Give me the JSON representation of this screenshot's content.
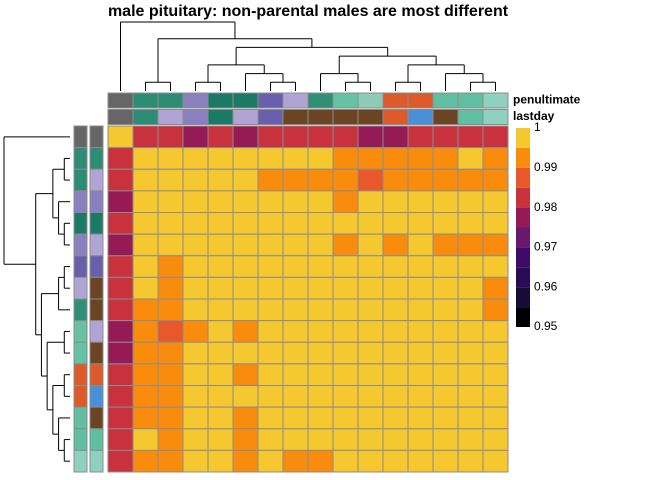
{
  "chart_data": {
    "type": "heatmap",
    "title": "male pituitary: non-parental males are most different",
    "values": [
      [
        1,
        0.982,
        0.982,
        0.977,
        0.982,
        0.977,
        0.982,
        0.982,
        0.982,
        0.982,
        0.977,
        0.977,
        0.982,
        0.982,
        0.982,
        0.982
      ],
      [
        0.982,
        0.997,
        0.997,
        0.997,
        0.997,
        0.997,
        0.997,
        0.997,
        0.997,
        0.992,
        0.992,
        0.992,
        0.992,
        0.992,
        0.997,
        0.992
      ],
      [
        0.982,
        0.997,
        0.997,
        0.997,
        0.997,
        0.997,
        0.992,
        0.992,
        0.992,
        0.992,
        0.987,
        0.992,
        0.992,
        0.992,
        0.992,
        0.992
      ],
      [
        0.977,
        0.997,
        0.997,
        0.997,
        0.997,
        0.997,
        0.997,
        0.997,
        0.997,
        0.992,
        0.997,
        0.997,
        0.997,
        0.997,
        0.997,
        0.997
      ],
      [
        0.982,
        0.997,
        0.997,
        0.997,
        0.997,
        0.997,
        0.997,
        0.997,
        0.997,
        0.997,
        0.997,
        0.997,
        0.997,
        0.997,
        0.997,
        0.997
      ],
      [
        0.977,
        0.997,
        0.997,
        0.997,
        0.997,
        0.997,
        0.997,
        0.997,
        0.997,
        0.992,
        0.997,
        0.992,
        0.997,
        0.992,
        0.992,
        0.992
      ],
      [
        0.982,
        0.997,
        0.992,
        0.997,
        0.997,
        0.997,
        0.997,
        0.997,
        0.997,
        0.997,
        0.997,
        0.997,
        0.997,
        0.997,
        0.997,
        0.997
      ],
      [
        0.982,
        0.997,
        0.992,
        0.997,
        0.997,
        0.997,
        0.997,
        0.997,
        0.997,
        0.997,
        0.997,
        0.997,
        0.997,
        0.997,
        0.997,
        0.992
      ],
      [
        0.982,
        0.992,
        0.992,
        0.997,
        0.997,
        0.997,
        0.997,
        0.997,
        0.997,
        0.997,
        0.997,
        0.997,
        0.997,
        0.997,
        0.997,
        0.992
      ],
      [
        0.977,
        0.992,
        0.987,
        0.992,
        0.997,
        0.992,
        0.997,
        0.997,
        0.997,
        0.997,
        0.997,
        0.997,
        0.997,
        0.997,
        0.997,
        0.997
      ],
      [
        0.977,
        0.992,
        0.992,
        0.997,
        0.997,
        0.997,
        0.997,
        0.997,
        0.997,
        0.997,
        0.997,
        0.997,
        0.997,
        0.997,
        0.997,
        0.997
      ],
      [
        0.982,
        0.992,
        0.992,
        0.997,
        0.997,
        0.992,
        0.997,
        0.997,
        0.997,
        0.997,
        0.997,
        0.997,
        0.997,
        0.997,
        0.997,
        0.997
      ],
      [
        0.982,
        0.992,
        0.992,
        0.997,
        0.997,
        0.997,
        0.997,
        0.997,
        0.997,
        0.997,
        0.997,
        0.997,
        0.997,
        0.997,
        0.997,
        0.997
      ],
      [
        0.982,
        0.992,
        0.992,
        0.997,
        0.997,
        0.992,
        0.997,
        0.997,
        0.997,
        0.997,
        0.997,
        0.997,
        0.997,
        0.997,
        0.997,
        0.997
      ],
      [
        0.982,
        0.997,
        0.992,
        0.997,
        0.997,
        0.992,
        0.997,
        0.997,
        0.997,
        0.997,
        0.997,
        0.997,
        0.997,
        0.997,
        0.997,
        0.997
      ],
      [
        0.982,
        0.992,
        0.992,
        0.997,
        0.997,
        0.992,
        0.997,
        0.992,
        0.992,
        0.997,
        0.997,
        0.997,
        0.997,
        0.997,
        0.997,
        0.997
      ]
    ],
    "color_steps": [
      {
        "value": 0.95,
        "color": "#000004"
      },
      {
        "value": 0.955,
        "color": "#160b39"
      },
      {
        "value": 0.96,
        "color": "#2a0b57"
      },
      {
        "value": 0.965,
        "color": "#420a68"
      },
      {
        "value": 0.97,
        "color": "#6a176e"
      },
      {
        "value": 0.975,
        "color": "#961a55"
      },
      {
        "value": 0.98,
        "color": "#c9323d"
      },
      {
        "value": 0.985,
        "color": "#e8582a"
      },
      {
        "value": 0.99,
        "color": "#f98c0c"
      },
      {
        "value": 0.995,
        "color": "#f5c82f"
      }
    ],
    "colorbar_lim": [
      0.95,
      1
    ],
    "colorbar_ticks": [
      0.95,
      0.96,
      0.97,
      0.98,
      0.99,
      1
    ],
    "annotation_names": [
      "penultimate",
      "lastday"
    ],
    "column_annotations": [
      [
        "#666666",
        "#2e8b74",
        "#2e8b74",
        "#8a7fbf",
        "#1b7a65",
        "#1b7a65",
        "#6a5fad",
        "#b0a4d4",
        "#2f9077",
        "#66c2a5",
        "#8ccbb8",
        "#dd5a2b",
        "#dd5a2b",
        "#5fbfa0",
        "#5fbfa0",
        "#8fd1c0"
      ],
      [
        "#666666",
        "#2e8b74",
        "#b0a4d4",
        "#8a7fbf",
        "#1b7a65",
        "#b0a4d4",
        "#6a5fad",
        "#6b4423",
        "#6b4423",
        "#6b4423",
        "#6b4423",
        "#dd5a2b",
        "#4a8fd8",
        "#6b4423",
        "#5fbfa0",
        "#8fd1c0"
      ]
    ],
    "row_annotations": [
      [
        "#666666",
        "#2e8b74",
        "#2e8b74",
        "#8a7fbf",
        "#1b7a65",
        "#8a7fbf",
        "#6a5fad",
        "#b0a4d4",
        "#2f9077",
        "#66c2a5",
        "#66c2a5",
        "#dd5a2b",
        "#dd5a2b",
        "#5fbfa0",
        "#5fbfa0",
        "#8fd1c0"
      ],
      [
        "#666666",
        "#2e8b74",
        "#b0a4d4",
        "#8a7fbf",
        "#1b7a65",
        "#b0a4d4",
        "#6a5fad",
        "#6b4423",
        "#6b4423",
        "#b0a4d4",
        "#6b4423",
        "#dd5a2b",
        "#4a8fd8",
        "#6b4423",
        "#5fbfa0",
        "#8fd1c0"
      ]
    ],
    "cell_border": "#8c8c8c"
  }
}
